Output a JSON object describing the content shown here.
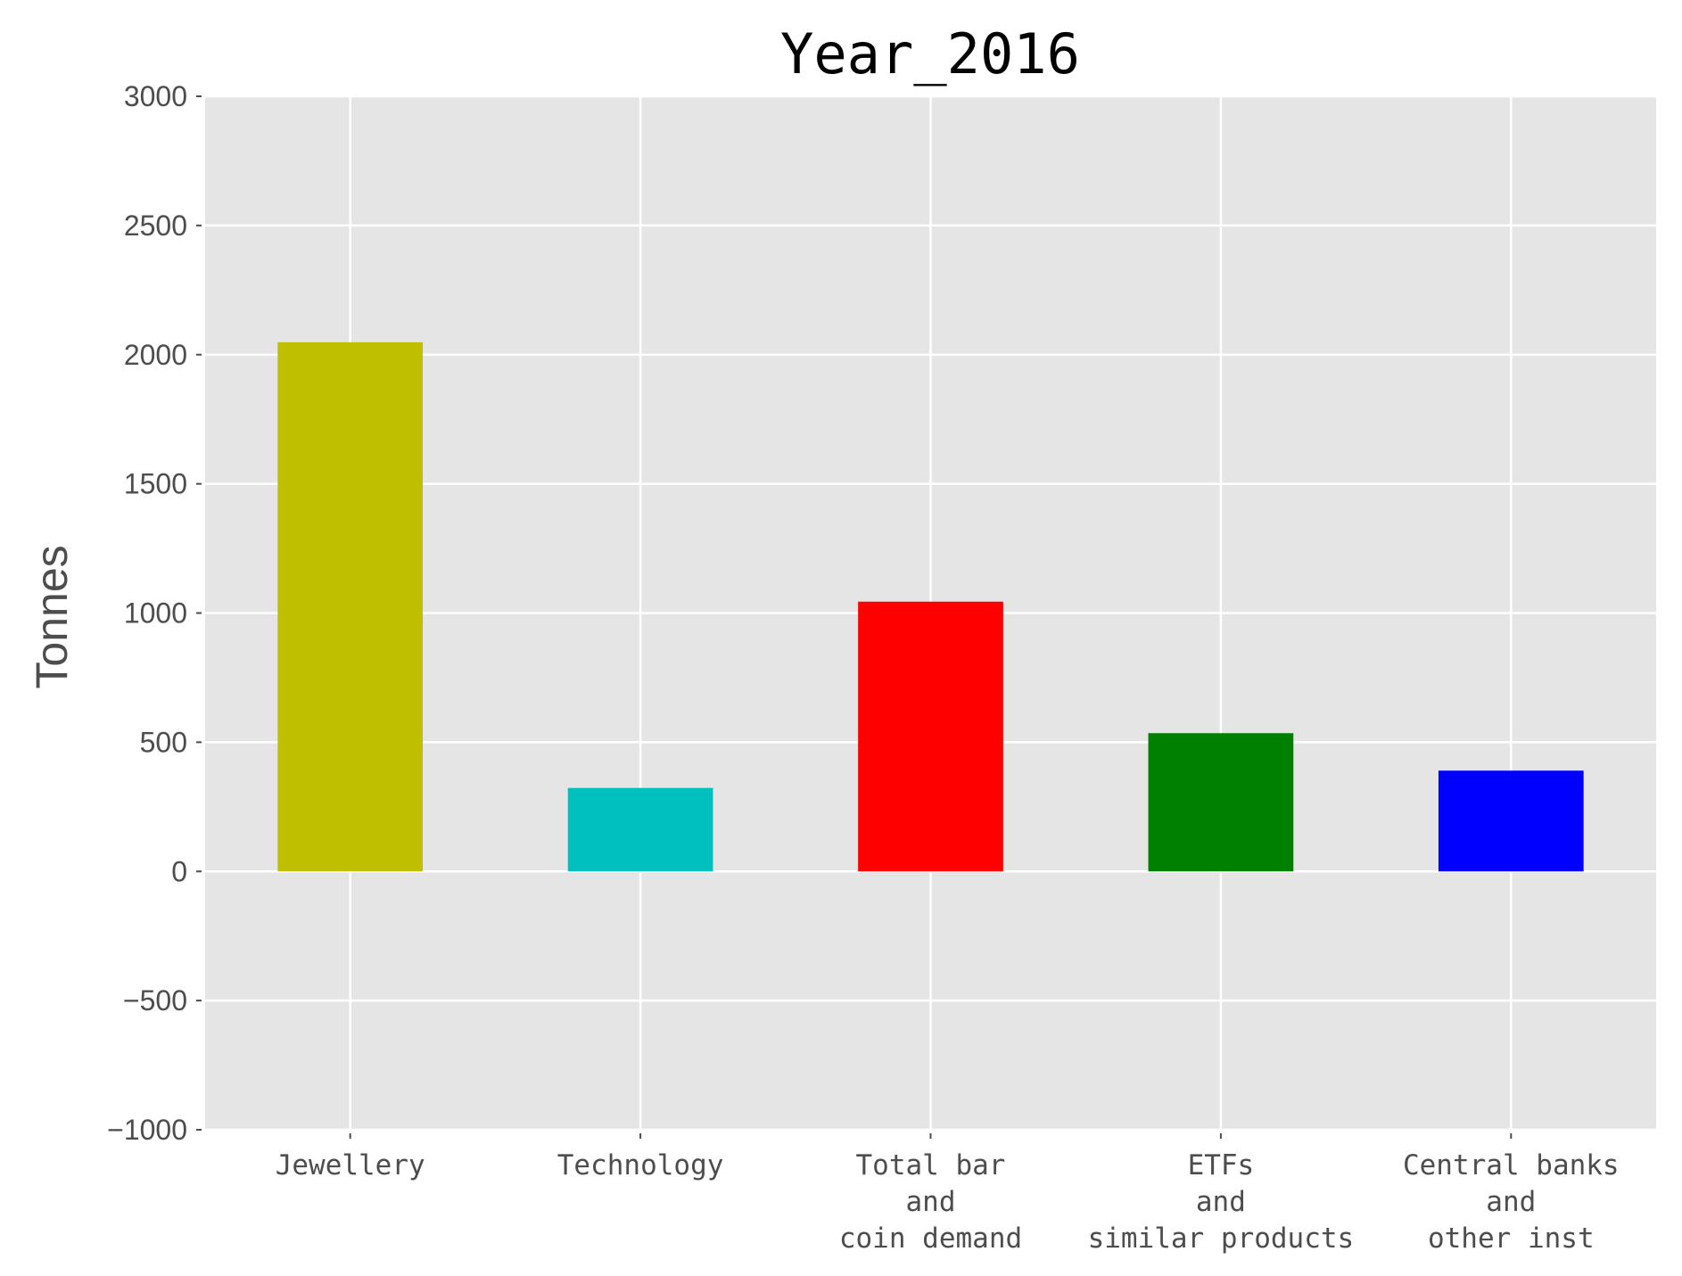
{
  "chart_data": {
    "type": "bar",
    "title": "Year_2016",
    "xlabel": "",
    "ylabel": "Tonnes",
    "ylim": [
      -1000,
      3000
    ],
    "yticks": [
      -1000,
      -500,
      0,
      500,
      1000,
      1500,
      2000,
      2500,
      3000
    ],
    "ytick_labels": [
      "−1000",
      "−500",
      "0",
      "500",
      "1000",
      "1500",
      "2000",
      "2500",
      "3000"
    ],
    "grid": true,
    "categories": [
      [
        "Jewellery"
      ],
      [
        "Technology"
      ],
      [
        "Total bar",
        "and",
        "coin demand"
      ],
      [
        "ETFs",
        "and",
        "similar products"
      ],
      [
        "Central banks",
        "and",
        "other inst"
      ]
    ],
    "values": [
      2048,
      323,
      1044,
      535,
      390
    ],
    "colors": [
      "#bfbf00",
      "#00bfbf",
      "#ff0000",
      "#008000",
      "#0000ff"
    ],
    "background": "#e5e5e5"
  }
}
